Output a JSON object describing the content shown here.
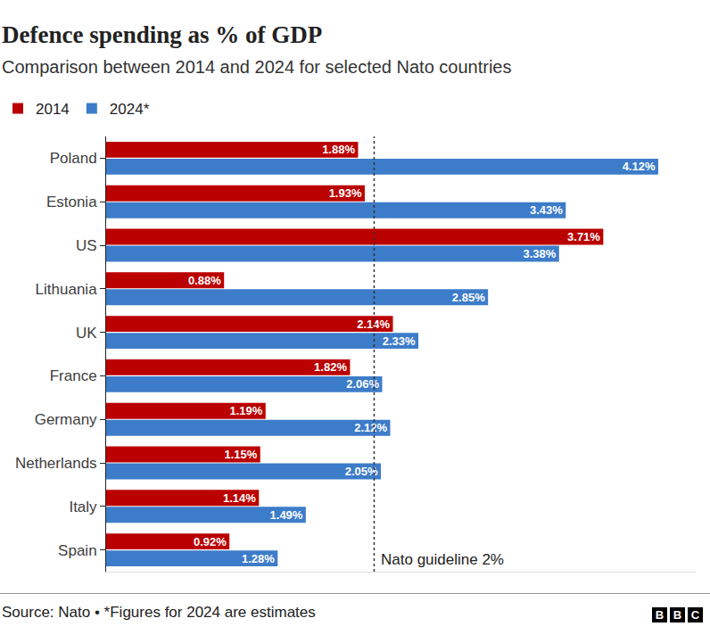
{
  "chart_data": {
    "type": "bar",
    "title": "Defence spending as % of GDP",
    "subtitle": "Comparison between 2014 and 2024 for selected Nato countries",
    "source": "Source: Nato • *Figures for 2024 are estimates",
    "logo": "BBC",
    "orientation": "horizontal",
    "data_labels": true,
    "tick_labels": "y",
    "legend": "top-left",
    "categories": [
      "Poland",
      "Estonia",
      "US",
      "Lithuania",
      "UK",
      "France",
      "Germany",
      "Netherlands",
      "Italy",
      "Spain"
    ],
    "series": [
      {
        "name": "2014",
        "color": "#bb0000",
        "values": [
          1.88,
          1.93,
          3.71,
          0.88,
          2.14,
          1.82,
          1.19,
          1.15,
          1.14,
          0.92
        ],
        "value_labels": [
          "1.88%",
          "1.93%",
          "3.71%",
          "0.88%",
          "2.14%",
          "1.82%",
          "1.19%",
          "1.15%",
          "1.14%",
          "0.92%"
        ]
      },
      {
        "name": "2024*",
        "color": "#3d7cc9",
        "values": [
          4.12,
          3.43,
          3.38,
          2.85,
          2.33,
          2.06,
          2.12,
          2.05,
          1.49,
          1.28
        ],
        "value_labels": [
          "4.12%",
          "3.43%",
          "3.38%",
          "2.85%",
          "2.33%",
          "2.06%",
          "2.12%",
          "2.05%",
          "1.49%",
          "1.28%"
        ]
      }
    ],
    "xlim": [
      0,
      4.4
    ],
    "xticks": [],
    "reference_line": {
      "value": 2,
      "label": "Nato guideline 2%"
    }
  }
}
